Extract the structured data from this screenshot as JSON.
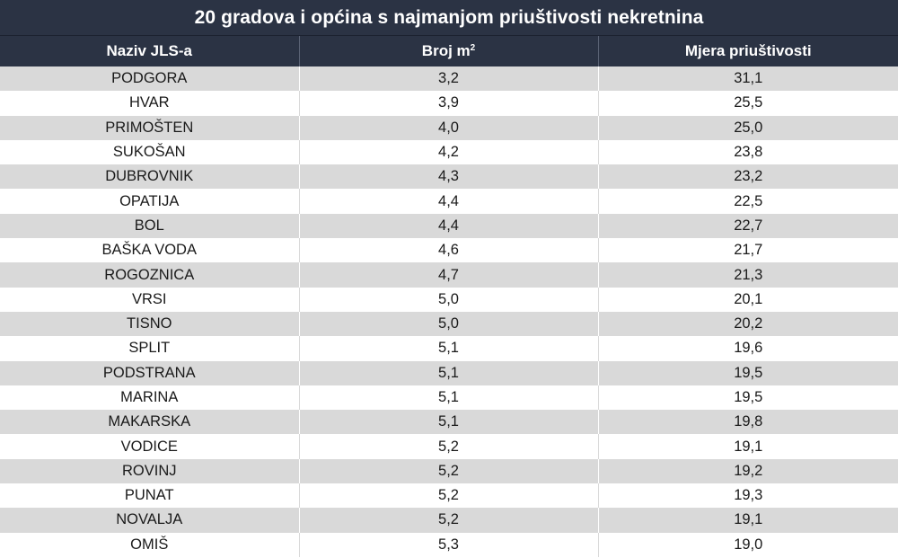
{
  "chart_data": {
    "type": "table",
    "title": "20 gradova i općina s najmanjom priuštivosti nekretnina",
    "columns": [
      "Naziv JLS-a",
      "Broj m",
      "Mjera priuštivosti"
    ],
    "column_superscripts": [
      "",
      "2",
      ""
    ],
    "rows": [
      [
        "PODGORA",
        "3,2",
        "31,1"
      ],
      [
        "HVAR",
        "3,9",
        "25,5"
      ],
      [
        "PRIMOŠTEN",
        "4,0",
        "25,0"
      ],
      [
        "SUKOŠAN",
        "4,2",
        "23,8"
      ],
      [
        "DUBROVNIK",
        "4,3",
        "23,2"
      ],
      [
        "OPATIJA",
        "4,4",
        "22,5"
      ],
      [
        "BOL",
        "4,4",
        "22,7"
      ],
      [
        "BAŠKA VODA",
        "4,6",
        "21,7"
      ],
      [
        "ROGOZNICA",
        "4,7",
        "21,3"
      ],
      [
        "VRSI",
        "5,0",
        "20,1"
      ],
      [
        "TISNO",
        "5,0",
        "20,2"
      ],
      [
        "SPLIT",
        "5,1",
        "19,6"
      ],
      [
        "PODSTRANA",
        "5,1",
        "19,5"
      ],
      [
        "MARINA",
        "5,1",
        "19,5"
      ],
      [
        "MAKARSKA",
        "5,1",
        "19,8"
      ],
      [
        "VODICE",
        "5,2",
        "19,1"
      ],
      [
        "ROVINJ",
        "5,2",
        "19,2"
      ],
      [
        "PUNAT",
        "5,2",
        "19,3"
      ],
      [
        "NOVALJA",
        "5,2",
        "19,1"
      ],
      [
        "OMIŠ",
        "5,3",
        "19,0"
      ]
    ]
  },
  "colors": {
    "header_bg": "#2b3344",
    "row_alt_bg": "#d9d9d9",
    "row_bg": "#ffffff"
  }
}
